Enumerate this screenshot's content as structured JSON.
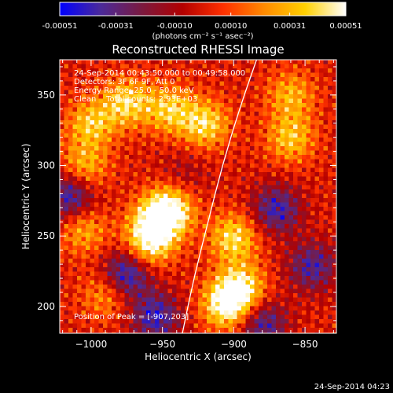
{
  "chart_data": {
    "type": "heatmap",
    "title": "Reconstructed RHESSI Image",
    "xlabel": "Heliocentric X (arcsec)",
    "ylabel": "Heliocentric Y (arcsec)",
    "xlim": [
      -1022,
      -828
    ],
    "ylim": [
      181,
      375
    ],
    "x_ticks": [
      -1000,
      -950,
      -900,
      -850
    ],
    "y_ticks": [
      200,
      250,
      300,
      350
    ],
    "colorbar": {
      "ticks": [
        -0.00051,
        -0.00031,
        -0.0001,
        0.0001,
        0.00031,
        0.00051
      ],
      "tick_labels": [
        "-0.00051",
        "-0.00031",
        "-0.00010",
        "0.00010",
        "0.00031",
        "0.00051"
      ],
      "range": [
        -0.00051,
        0.00051
      ],
      "units": "(photons cm⁻² s⁻¹ asec⁻²)",
      "colors": [
        "#0000ff",
        "#4b2a9a",
        "#7a1a40",
        "#b30000",
        "#ff3000",
        "#ff8a00",
        "#ffd000",
        "#ffffff"
      ]
    },
    "annotations": [
      "24-Sep-2014 00:43:50.000 to 00:49:58.000",
      "Detectors: 3F 6F 9F, Att 0",
      "Energy Range: 25.0 - 50.0 keV",
      "Clean    Total counts: 2.93E+03"
    ],
    "peak_label": "Position of Peak = [-907,203]",
    "peak": [
      -907,
      203
    ],
    "limb_curve": [
      [
        -936,
        181
      ],
      [
        -928,
        220
      ],
      [
        -918,
        260
      ],
      [
        -908,
        300
      ],
      [
        -896,
        340
      ],
      [
        -884,
        375
      ]
    ],
    "emission_regions": [
      {
        "x": -955,
        "y": 260,
        "value": 0.00045
      },
      {
        "x": -945,
        "y": 270,
        "value": 0.0005
      },
      {
        "x": -960,
        "y": 245,
        "value": 0.00038
      },
      {
        "x": -900,
        "y": 250,
        "value": 0.00042
      },
      {
        "x": -905,
        "y": 203,
        "value": 0.00051
      },
      {
        "x": -895,
        "y": 215,
        "value": 0.00044
      },
      {
        "x": -1000,
        "y": 330,
        "value": 0.00036
      },
      {
        "x": -975,
        "y": 345,
        "value": 0.0004
      },
      {
        "x": -945,
        "y": 340,
        "value": 0.00037
      },
      {
        "x": -920,
        "y": 330,
        "value": 0.00041
      },
      {
        "x": -860,
        "y": 320,
        "value": 0.00035
      },
      {
        "x": -1005,
        "y": 255,
        "value": 0.00028
      },
      {
        "x": -990,
        "y": 210,
        "value": 0.00025
      },
      {
        "x": -860,
        "y": 350,
        "value": 0.0003
      },
      {
        "x": -1005,
        "y": 300,
        "value": 0.00032
      },
      {
        "x": -935,
        "y": 295,
        "value": -0.00012
      },
      {
        "x": -975,
        "y": 225,
        "value": -0.00045
      },
      {
        "x": -1015,
        "y": 280,
        "value": -0.00042
      },
      {
        "x": -955,
        "y": 195,
        "value": -0.0004
      },
      {
        "x": -870,
        "y": 270,
        "value": -0.00038
      },
      {
        "x": -845,
        "y": 230,
        "value": -0.00035
      },
      {
        "x": -880,
        "y": 190,
        "value": -0.00036
      }
    ]
  },
  "footer": {
    "timestamp": "24-Sep-2014 04:23"
  }
}
